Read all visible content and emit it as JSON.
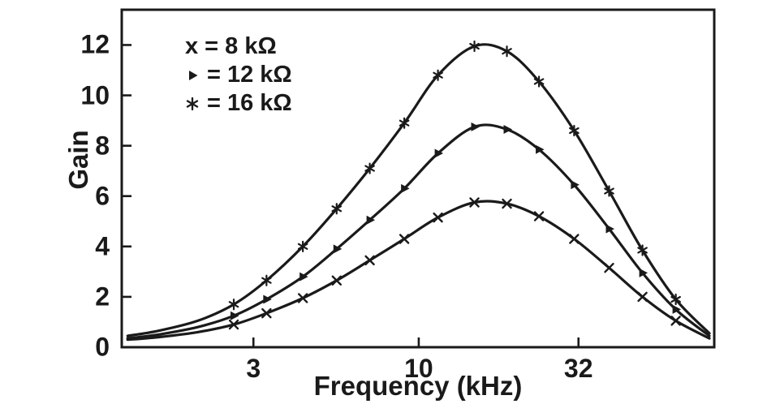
{
  "figure": {
    "background": "#ffffff",
    "ink_color": "#1a1a1a"
  },
  "chart_data": {
    "type": "line",
    "title": "",
    "x_axis": {
      "label": "Frequency (kHz)",
      "scale": "log",
      "range": [
        1.15,
        86
      ],
      "ticks": [
        3,
        10,
        32
      ]
    },
    "y_axis": {
      "label": "Gain",
      "range": [
        0,
        13.4
      ],
      "ticks": [
        0,
        2,
        4,
        6,
        8,
        10,
        12
      ]
    },
    "grid": false,
    "legend_position": "top-left-inside",
    "frequencies_khz": [
      1.2,
      1.5,
      2,
      2.6,
      3.3,
      4.3,
      5.5,
      7,
      9,
      11.5,
      15,
      19,
      24,
      31,
      40,
      51,
      65,
      83
    ],
    "marker_indices": [
      3,
      4,
      5,
      6,
      7,
      8,
      9,
      10,
      11,
      12,
      13,
      14,
      15,
      16
    ],
    "series": [
      {
        "name": "x = 8 kOhm",
        "marker": "x",
        "legend_label": "x = 8 kΩ",
        "peak_gain": 5.75,
        "values": [
          0.3,
          0.4,
          0.6,
          0.9,
          1.35,
          1.95,
          2.65,
          3.45,
          4.3,
          5.15,
          5.75,
          5.7,
          5.2,
          4.3,
          3.15,
          2.0,
          1.05,
          0.35
        ]
      },
      {
        "name": "triangle = 12 kOhm",
        "marker": "triangle-right",
        "legend_label": "= 12 kΩ",
        "peak_gain": 8.75,
        "values": [
          0.35,
          0.5,
          0.8,
          1.25,
          1.9,
          2.8,
          3.9,
          5.05,
          6.3,
          7.7,
          8.75,
          8.65,
          7.85,
          6.45,
          4.7,
          2.95,
          1.5,
          0.45
        ]
      },
      {
        "name": "asterisk = 16 kOhm",
        "marker": "asterisk",
        "legend_label": "= 16 kΩ",
        "peak_gain": 11.95,
        "values": [
          0.45,
          0.65,
          1.05,
          1.7,
          2.65,
          4.0,
          5.5,
          7.1,
          8.9,
          10.8,
          11.95,
          11.75,
          10.55,
          8.6,
          6.2,
          3.85,
          1.9,
          0.55
        ]
      }
    ]
  }
}
